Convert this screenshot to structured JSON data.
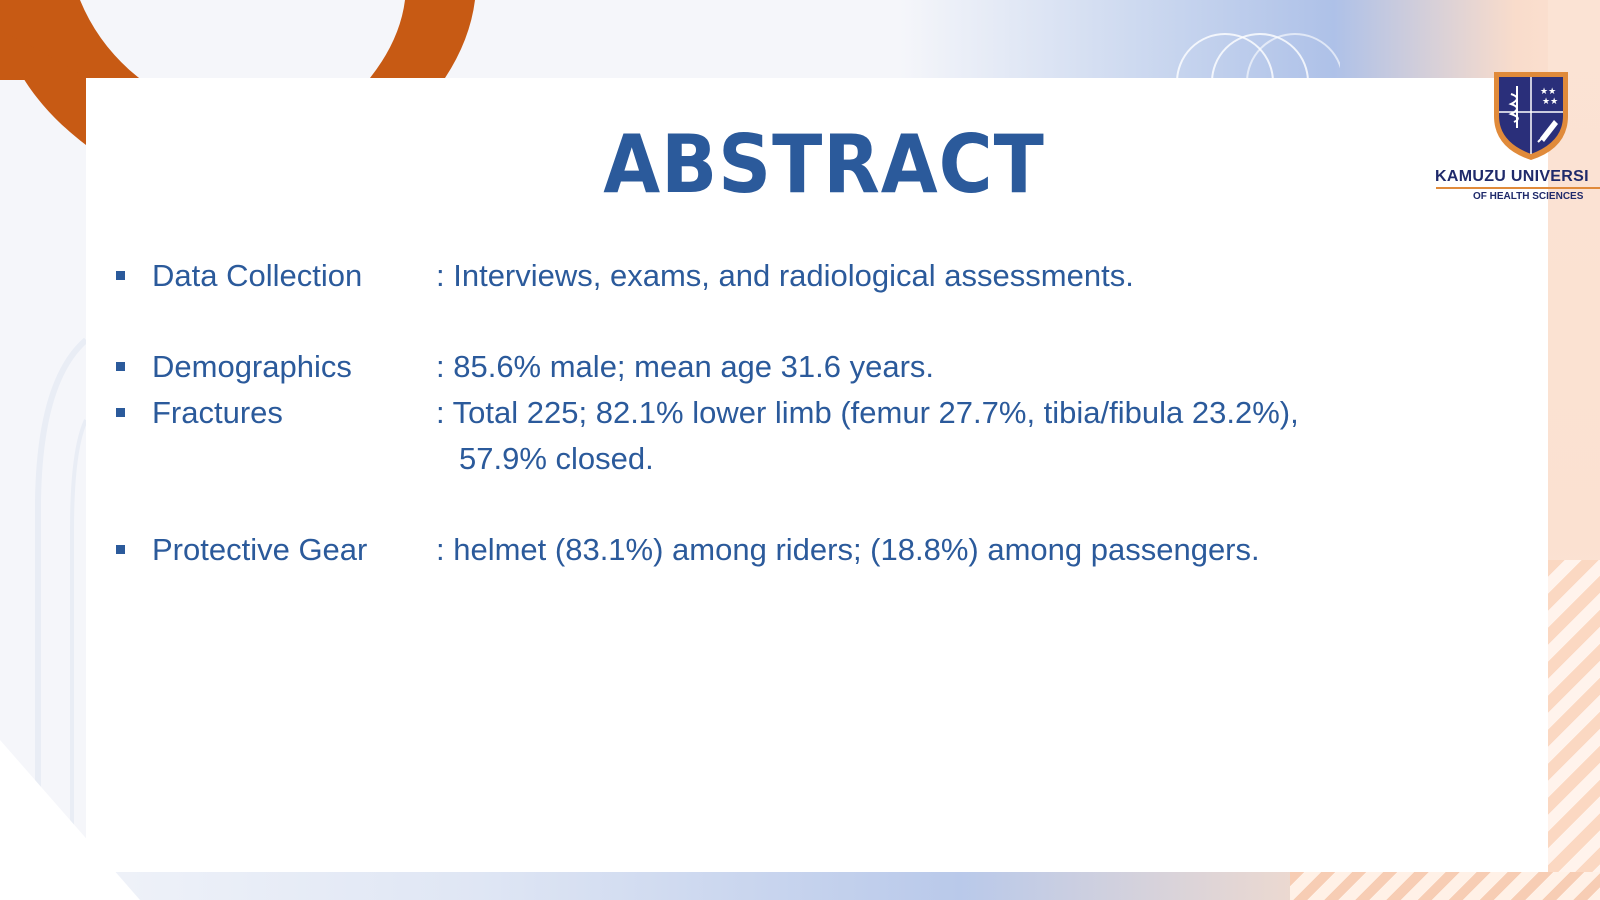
{
  "slide": {
    "title": "ABSTRACT",
    "bullets": [
      {
        "label": "Data Collection",
        "value": ": Interviews, exams, and radiological assessments."
      },
      {
        "label": "Demographics",
        "value": ": 85.6% male; mean age 31.6 years."
      },
      {
        "label": "Fractures",
        "value": ":  Total 225; 82.1% lower limb (femur 27.7%, tibia/fibula 23.2%),",
        "continuation": "57.9% closed."
      },
      {
        "label": "Protective Gear",
        "value": ": helmet (83.1%) among riders; (18.8%) among passengers."
      }
    ]
  },
  "logo": {
    "name": "KAMUZU UNIVERSI",
    "subtitle": "OF HEALTH SCIENCES",
    "icon": "university-crest-icon"
  },
  "colors": {
    "text": "#2b5a9b",
    "accent_orange": "#c75a14",
    "logo_navy": "#1f2a6b",
    "logo_gold": "#e08a3a"
  }
}
